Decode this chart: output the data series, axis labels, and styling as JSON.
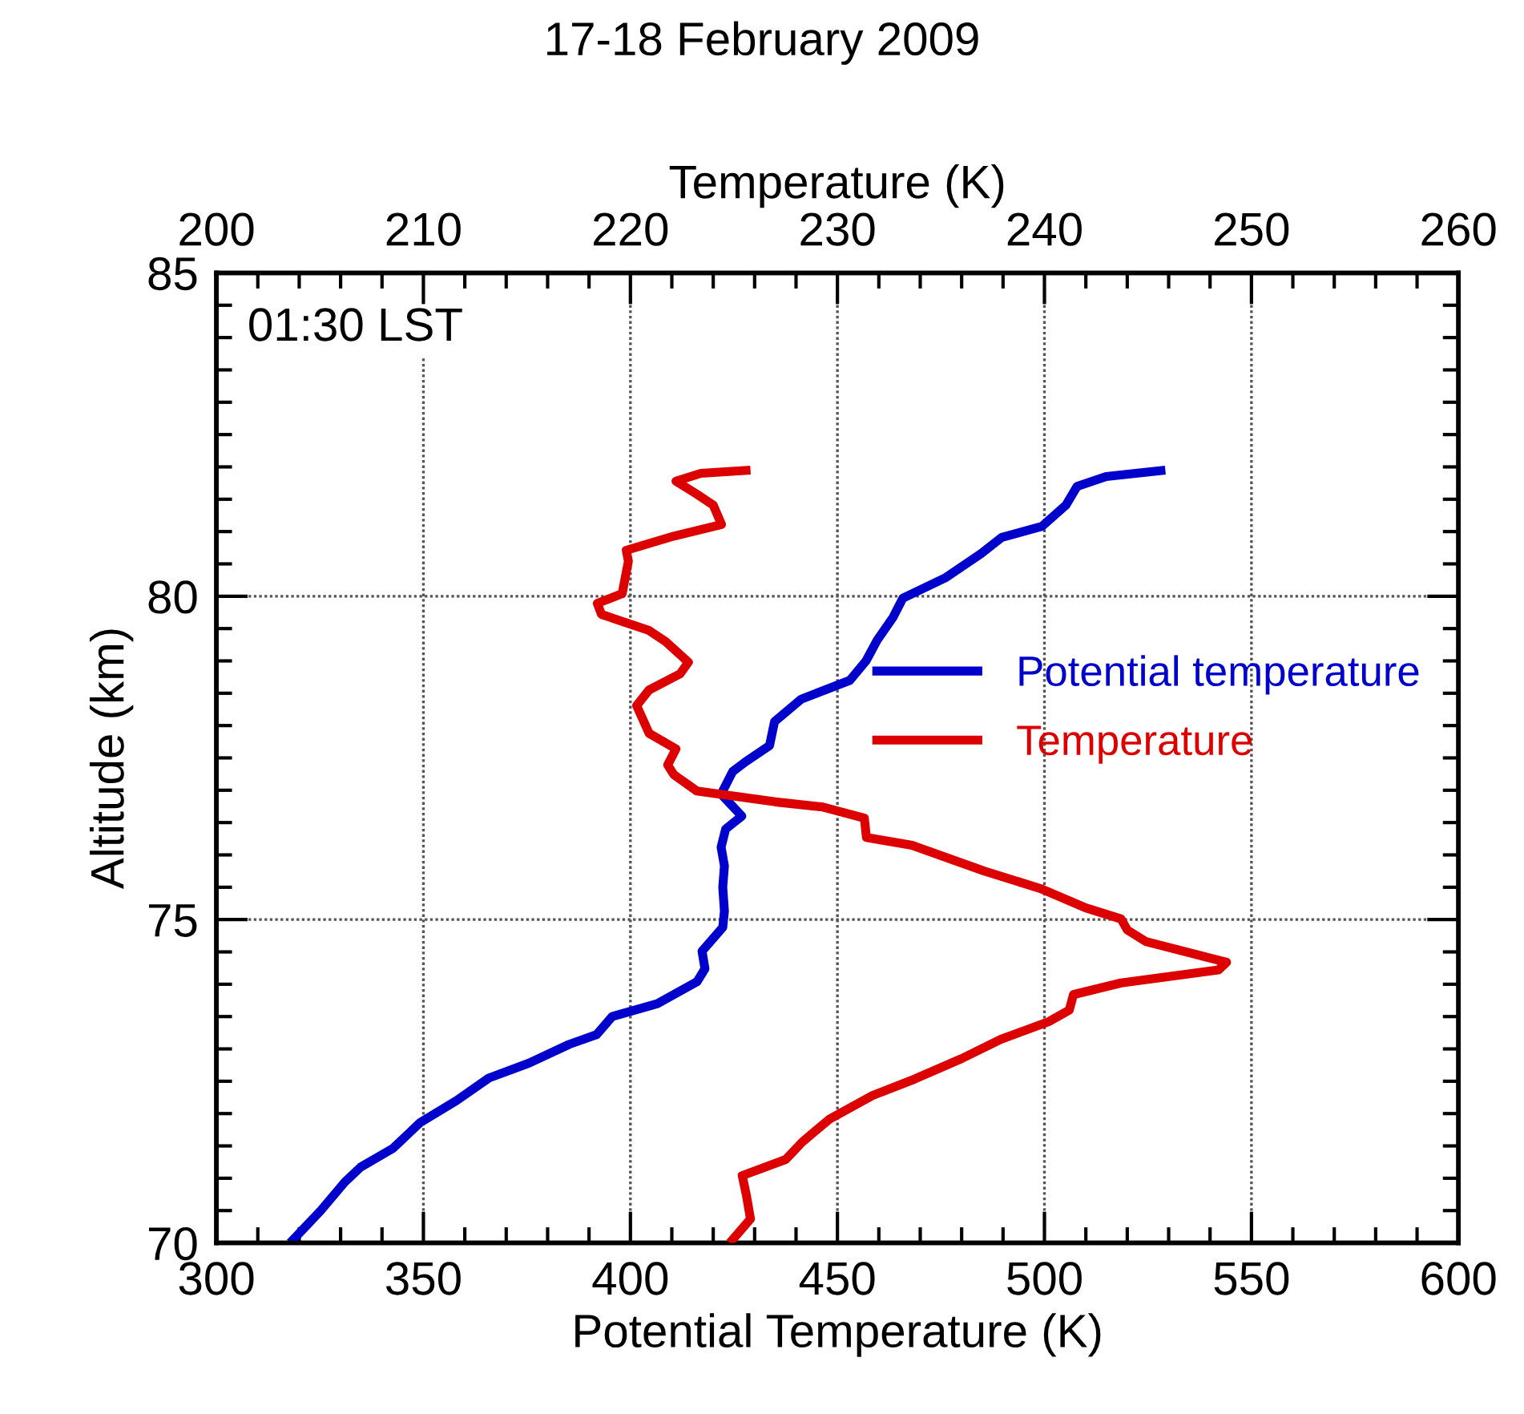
{
  "chart_data": {
    "type": "line",
    "title": "17-18 February 2009",
    "x2label": "Temperature (K)",
    "xlabel": "Potential Temperature (K)",
    "ylabel": "Altitude (km)",
    "xlim": [
      300,
      600
    ],
    "xticks": [
      300,
      350,
      400,
      450,
      500,
      550,
      600
    ],
    "x2lim": [
      200,
      260
    ],
    "x2ticks": [
      200,
      210,
      220,
      230,
      240,
      250,
      260
    ],
    "ylim": [
      70,
      85
    ],
    "yticks": [
      70,
      75,
      80,
      85
    ],
    "grid": true,
    "legend": "right",
    "line_style": "solid",
    "marker": "none",
    "annotations": [
      "01:30 LST"
    ],
    "series": [
      {
        "name": "Potential temperature",
        "color": "#0000cc",
        "x": [
          317.8,
          325.2,
          331,
          334.8,
          342.6,
          349.2,
          358,
          365.8,
          375.5,
          385.2,
          391.8,
          395.6,
          406.5,
          416.1,
          418,
          417.3,
          422.3,
          422.7,
          422.3,
          422.7,
          421.9,
          423,
          426.9,
          421.9,
          424.7,
          427.8,
          433.6,
          434.8,
          441.3,
          453,
          456.9,
          459.6,
          463.4,
          465.8,
          476.2,
          484.7,
          489.7,
          499.4,
          505.2,
          507.9,
          514.9,
          529.2
        ],
        "values": [
          70,
          70.5,
          70.94,
          71.17,
          71.46,
          71.86,
          72.2,
          72.55,
          72.78,
          73.07,
          73.22,
          73.5,
          73.7,
          74.04,
          74.24,
          74.51,
          74.88,
          75.13,
          75.5,
          75.83,
          76.12,
          76.4,
          76.6,
          76.94,
          77.29,
          77.44,
          77.69,
          78.06,
          78.41,
          78.7,
          79.0,
          79.32,
          79.67,
          79.97,
          80.29,
          80.66,
          80.91,
          81.08,
          81.41,
          81.7,
          81.85,
          81.95
        ]
      },
      {
        "name": "Temperature",
        "color": "#dd0000",
        "axis": "x2",
        "x": [
          224.8,
          225.8,
          225.6,
          225.4,
          227.5,
          228.3,
          229.6,
          231.7,
          233.7,
          236,
          237.9,
          240.2,
          241.2,
          241.4,
          243.7,
          248.4,
          248.8,
          244.9,
          244.0,
          243.7,
          242,
          239.8,
          237.1,
          233.6,
          231.4,
          231.3,
          229.3,
          227.0,
          223.2,
          222.1,
          221.8,
          222.2,
          220.9,
          220.3,
          220.9,
          222.4,
          222.8,
          221.7,
          220.9,
          218.6,
          218.4,
          219.6,
          219.9,
          219.8,
          222.1,
          224.4,
          224.0,
          223.2,
          222.2,
          223.4,
          225.8
        ],
        "values": [
          70,
          70.37,
          70.74,
          71.04,
          71.29,
          71.56,
          71.91,
          72.28,
          72.53,
          72.85,
          73.15,
          73.42,
          73.6,
          73.84,
          74.02,
          74.22,
          74.34,
          74.66,
          74.84,
          75.01,
          75.18,
          75.48,
          75.75,
          76.15,
          76.27,
          76.57,
          76.74,
          76.82,
          76.99,
          77.24,
          77.39,
          77.64,
          77.88,
          78.31,
          78.55,
          78.8,
          78.98,
          79.3,
          79.47,
          79.72,
          79.89,
          80.04,
          80.54,
          80.71,
          80.93,
          81.11,
          81.41,
          81.58,
          81.78,
          81.9,
          81.95
        ]
      }
    ]
  }
}
